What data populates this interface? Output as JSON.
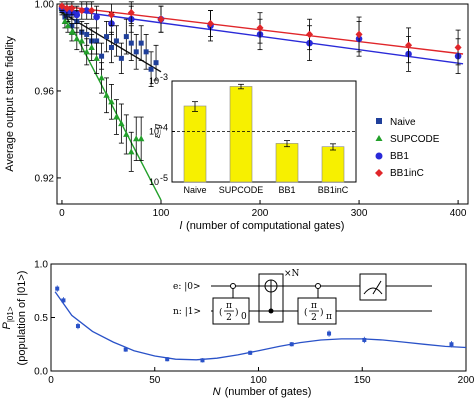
{
  "chart_data": [
    {
      "type": "scatter",
      "ylabel": "Average output state fidelity",
      "xlabel_var": "l",
      "xlabel": "(number of computational gates)",
      "xlim": [
        -5,
        410
      ],
      "ylim": [
        0.908,
        1.0
      ],
      "xticks": [
        0,
        100,
        200,
        300,
        400
      ],
      "yticks": [
        0.92,
        0.96,
        1.0
      ],
      "ytick_labels": [
        "0.92",
        "0.96",
        "1.00"
      ],
      "series": [
        {
          "name": "Naive",
          "color": "#1f3f9a",
          "marker": "square",
          "x": [
            0,
            3,
            6,
            10,
            15,
            20,
            25,
            30,
            35,
            40,
            45,
            50,
            55,
            60,
            65,
            70,
            75,
            80,
            85,
            90,
            95
          ],
          "y": [
            0.997,
            0.994,
            0.995,
            0.99,
            0.992,
            0.987,
            0.986,
            0.983,
            0.983,
            0.976,
            0.985,
            0.98,
            0.983,
            0.975,
            0.985,
            0.982,
            0.978,
            0.982,
            0.978,
            0.97,
            0.973
          ],
          "err": [
            0.002,
            0.003,
            0.003,
            0.004,
            0.005,
            0.005,
            0.005,
            0.006,
            0.006,
            0.006,
            0.007,
            0.007,
            0.007,
            0.007,
            0.008,
            0.008,
            0.008,
            0.008,
            0.008,
            0.008,
            0.008
          ]
        },
        {
          "name": "SUPCODE",
          "color": "#22a02a",
          "marker": "triangle",
          "x": [
            0,
            3,
            6,
            10,
            15,
            20,
            25,
            30,
            35,
            40,
            45,
            50,
            55,
            60,
            65,
            70,
            75,
            80
          ],
          "y": [
            0.998,
            0.992,
            0.99,
            0.987,
            0.984,
            0.983,
            0.978,
            0.98,
            0.975,
            0.966,
            0.958,
            0.955,
            0.948,
            0.945,
            0.94,
            0.932,
            0.938,
            0.938
          ],
          "err": [
            0.002,
            0.003,
            0.003,
            0.004,
            0.005,
            0.005,
            0.006,
            0.006,
            0.007,
            0.007,
            0.008,
            0.008,
            0.008,
            0.009,
            0.009,
            0.009,
            0.01,
            0.01
          ]
        },
        {
          "name": "BB1",
          "color": "#2a2ad8",
          "marker": "circle",
          "x": [
            0,
            5,
            10,
            15,
            25,
            35,
            50,
            70,
            100,
            150,
            200,
            250,
            300,
            350,
            400
          ],
          "y": [
            0.998,
            0.997,
            0.996,
            0.995,
            0.997,
            0.994,
            0.991,
            0.993,
            0.993,
            0.99,
            0.986,
            0.982,
            0.984,
            0.977,
            0.976
          ],
          "err": [
            0.002,
            0.003,
            0.003,
            0.004,
            0.004,
            0.005,
            0.005,
            0.006,
            0.006,
            0.007,
            0.007,
            0.008,
            0.008,
            0.008,
            0.008
          ]
        },
        {
          "name": "BB1inC",
          "color": "#e0262a",
          "marker": "diamond",
          "x": [
            0,
            5,
            10,
            20,
            30,
            50,
            70,
            100,
            150,
            200,
            250,
            300,
            350,
            400
          ],
          "y": [
            0.999,
            0.998,
            0.998,
            0.997,
            0.997,
            0.995,
            0.996,
            0.993,
            0.991,
            0.989,
            0.986,
            0.986,
            0.981,
            0.98
          ],
          "err": [
            0.002,
            0.003,
            0.003,
            0.004,
            0.004,
            0.005,
            0.005,
            0.006,
            0.006,
            0.007,
            0.007,
            0.008,
            0.008,
            0.008
          ]
        }
      ],
      "fits": [
        {
          "series": "Naive",
          "color": "#111111",
          "x": [
            0,
            100
          ],
          "y": [
            0.996,
            0.9688
          ]
        },
        {
          "series": "SUPCODE",
          "color": "#22a02a",
          "x": [
            0,
            100
          ],
          "y": [
            0.998,
            0.9098
          ]
        },
        {
          "series": "BB1",
          "color": "#2a2ad8",
          "x": [
            0,
            405
          ],
          "y": [
            0.9975,
            0.9725
          ]
        },
        {
          "series": "BB1inC",
          "color": "#e0262a",
          "x": [
            0,
            405
          ],
          "y": [
            0.999,
            0.977
          ]
        }
      ],
      "legend_position": "right"
    },
    {
      "type": "bar",
      "ylabel": "ε_g",
      "scale": "log",
      "categories": [
        "Naive",
        "SUPCODE",
        "BB1",
        "BB1inC"
      ],
      "values": [
        0.00032,
        0.00078,
        5.8e-05,
        5e-05
      ],
      "err": [
        7e-05,
        8e-05,
        8e-06,
        7e-06
      ],
      "reference_line": 0.0001,
      "ylim": [
        1e-05,
        0.001
      ],
      "ytick_labels": [
        {
          "value": 0.001,
          "base": "10",
          "exp": "-3"
        },
        {
          "value": 0.0001,
          "base": "10",
          "exp": "-4"
        },
        {
          "value": 1e-05,
          "base": "10",
          "exp": "-5"
        }
      ],
      "bar_color": "#f7f000"
    },
    {
      "type": "scatter",
      "ylabel_main": "P",
      "ylabel_sub": "|01>",
      "ylabel_paren": "(population of |01>)",
      "xlabel_var": "N",
      "xlabel": "(number of gates)",
      "xlim": [
        0,
        200
      ],
      "ylim": [
        0,
        1.0
      ],
      "xticks": [
        0,
        50,
        100,
        150,
        200
      ],
      "yticks": [
        0.0,
        0.5,
        1.0
      ],
      "ytick_labels": [
        "0.0",
        "0.5",
        "1.0"
      ],
      "color": "#2a52c8",
      "x": [
        3,
        6,
        13,
        36,
        56,
        73,
        96,
        116,
        134,
        151,
        193
      ],
      "y": [
        0.77,
        0.66,
        0.42,
        0.2,
        0.11,
        0.1,
        0.17,
        0.25,
        0.35,
        0.29,
        0.25
      ],
      "err": [
        0.03,
        0.03,
        0.03,
        0.02,
        0.02,
        0.02,
        0.02,
        0.02,
        0.03,
        0.03,
        0.03
      ],
      "fit": {
        "x": [
          2,
          10,
          20,
          30,
          40,
          50,
          60,
          70,
          80,
          90,
          100,
          110,
          120,
          130,
          140,
          150,
          160,
          170,
          180,
          190,
          200
        ],
        "y": [
          0.74,
          0.52,
          0.37,
          0.27,
          0.19,
          0.14,
          0.11,
          0.105,
          0.12,
          0.15,
          0.19,
          0.23,
          0.265,
          0.29,
          0.3,
          0.3,
          0.29,
          0.27,
          0.25,
          0.23,
          0.22
        ]
      }
    }
  ],
  "circuit": {
    "wire_e": "e: |0>",
    "wire_n": "n: |1>",
    "gate1_num": "π",
    "gate1_den": "2",
    "gate1_sub": "0",
    "gate2_num": "π",
    "gate2_den": "2",
    "gate2_sub": "π",
    "repeat": "×N"
  }
}
